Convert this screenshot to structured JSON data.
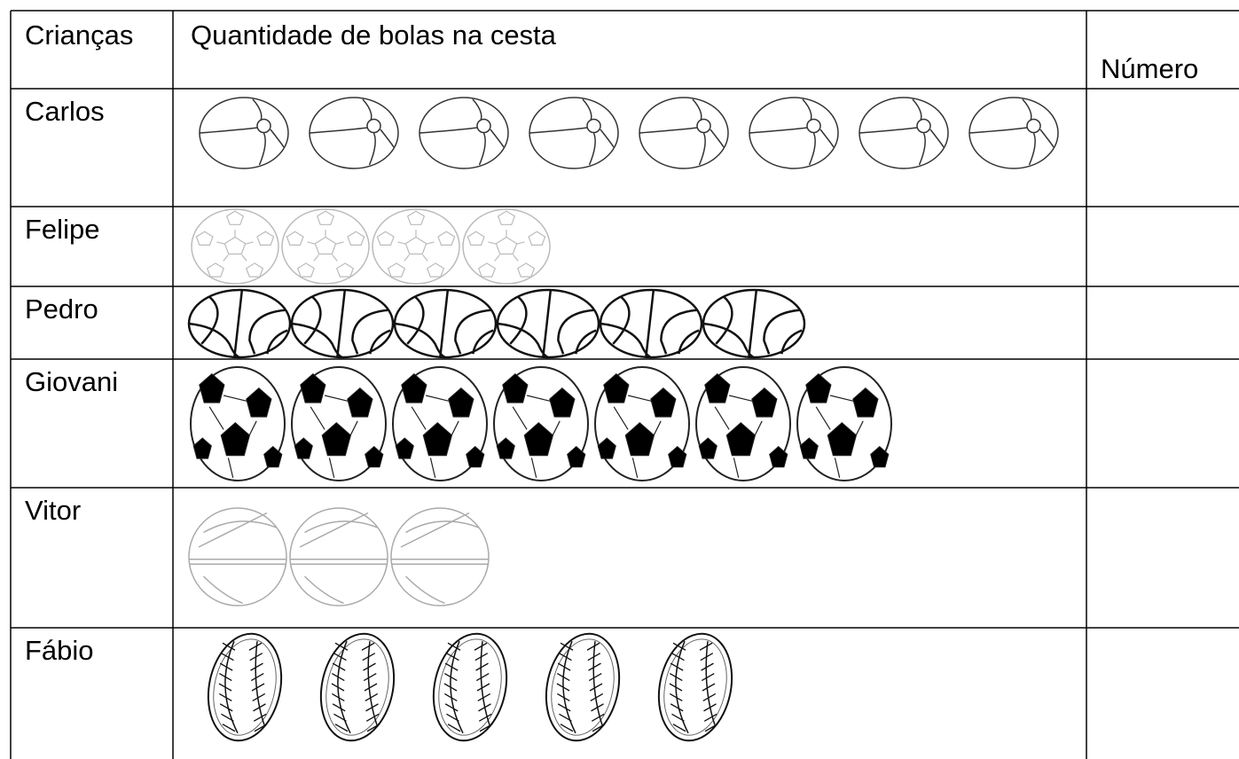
{
  "header": {
    "children": "Crianças",
    "quantity": "Quantidade de bolas na cesta",
    "number": "Número"
  },
  "rows": [
    {
      "name": "Carlos",
      "count": 8
    },
    {
      "name": "Felipe",
      "count": 4
    },
    {
      "name": "Pedro",
      "count": 6
    },
    {
      "name": "Giovani",
      "count": 7
    },
    {
      "name": "Vitor",
      "count": 3
    },
    {
      "name": "Fábio",
      "count": 5
    }
  ]
}
